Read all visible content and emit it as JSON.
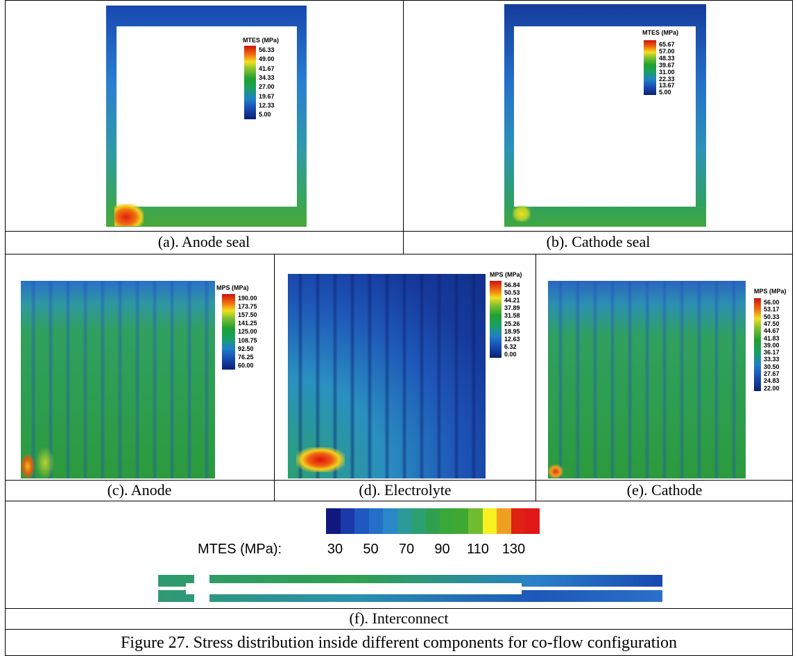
{
  "panels": [
    {
      "caption": "(a). Anode seal",
      "legend": {
        "title": "MTES (MPa)",
        "labels": [
          "56.33",
          "49.00",
          "41.67",
          "34.33",
          "27.00",
          "19.67",
          "12.33",
          "5.00"
        ]
      }
    },
    {
      "caption": "(b). Cathode seal",
      "legend": {
        "title": "MTES (MPa)",
        "labels": [
          "65.67",
          "57.00",
          "48.33",
          "39.67",
          "31.00",
          "22.33",
          "13.67",
          "5.00"
        ]
      }
    },
    {
      "caption": "(c). Anode",
      "legend": {
        "title": "MPS (MPa)",
        "labels": [
          "190.00",
          "173.75",
          "157.50",
          "141.25",
          "125.00",
          "108.75",
          "92.50",
          "76.25",
          "60.00"
        ]
      }
    },
    {
      "caption": "(d). Electrolyte",
      "legend": {
        "title": "MPS (MPa)",
        "labels": [
          "56.84",
          "50.53",
          "44.21",
          "37.89",
          "31.58",
          "25.26",
          "18.95",
          "12.63",
          "6.32",
          "0.00"
        ]
      }
    },
    {
      "caption": "(e). Cathode",
      "legend": {
        "title": "MPS (MPa)",
        "labels": [
          "56.00",
          "53.17",
          "50.33",
          "47.50",
          "44.67",
          "41.83",
          "39.00",
          "36.17",
          "33.33",
          "30.50",
          "27.67",
          "24.83",
          "22.00"
        ]
      }
    }
  ],
  "interconnect": {
    "legend_title": "MTES (MPa):",
    "labels": [
      "30",
      "50",
      "70",
      "90",
      "110",
      "130"
    ],
    "caption": "(f). Interconnect"
  },
  "caption": "Figure 27. Stress distribution inside different components for co-flow configuration"
}
